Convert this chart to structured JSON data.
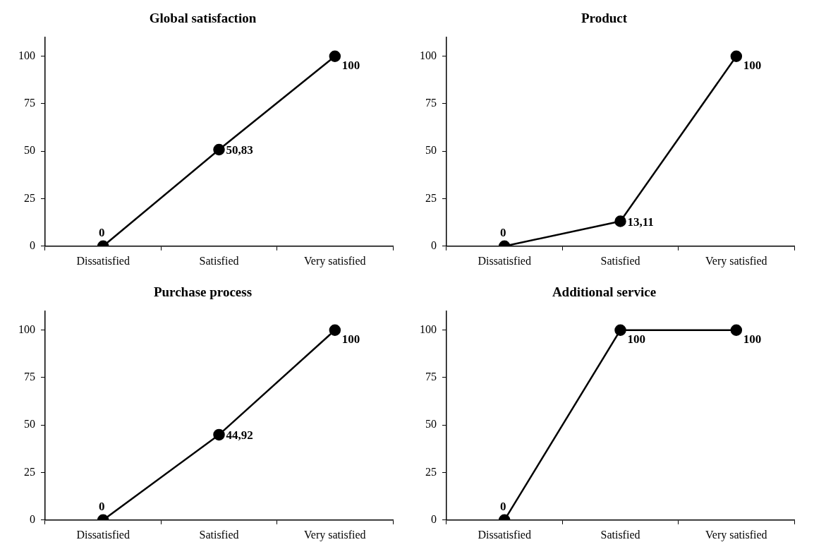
{
  "chart_data": [
    {
      "type": "line",
      "title": "Global satisfaction",
      "categories": [
        "Dissatisfied",
        "Satisfied",
        "Very satisfied"
      ],
      "values": [
        0,
        50.83,
        100
      ],
      "value_labels": [
        "0",
        "50,83",
        "100"
      ],
      "color": "#000000",
      "ylim": [
        0,
        110
      ],
      "yticks": [
        0,
        25,
        50,
        75,
        100
      ],
      "grid": false,
      "legend": false,
      "marker": "circle",
      "line_style": "solid"
    },
    {
      "type": "line",
      "title": "Product",
      "categories": [
        "Dissatisfied",
        "Satisfied",
        "Very satisfied"
      ],
      "values": [
        0,
        13.11,
        100
      ],
      "value_labels": [
        "0",
        "13,11",
        "100"
      ],
      "color": "#000000",
      "ylim": [
        0,
        110
      ],
      "yticks": [
        0,
        25,
        50,
        75,
        100
      ],
      "grid": false,
      "legend": false,
      "marker": "circle",
      "line_style": "solid"
    },
    {
      "type": "line",
      "title": "Purchase process",
      "categories": [
        "Dissatisfied",
        "Satisfied",
        "Very satisfied"
      ],
      "values": [
        0,
        44.92,
        100
      ],
      "value_labels": [
        "0",
        "44,92",
        "100"
      ],
      "color": "#000000",
      "ylim": [
        0,
        110
      ],
      "yticks": [
        0,
        25,
        50,
        75,
        100
      ],
      "grid": false,
      "legend": false,
      "marker": "circle",
      "line_style": "solid"
    },
    {
      "type": "line",
      "title": "Additional service",
      "categories": [
        "Dissatisfied",
        "Satisfied",
        "Very satisfied"
      ],
      "values": [
        0,
        100,
        100
      ],
      "value_labels": [
        "0",
        "100",
        "100"
      ],
      "color": "#000000",
      "ylim": [
        0,
        110
      ],
      "yticks": [
        0,
        25,
        50,
        75,
        100
      ],
      "grid": false,
      "legend": false,
      "marker": "circle",
      "line_style": "solid"
    }
  ]
}
